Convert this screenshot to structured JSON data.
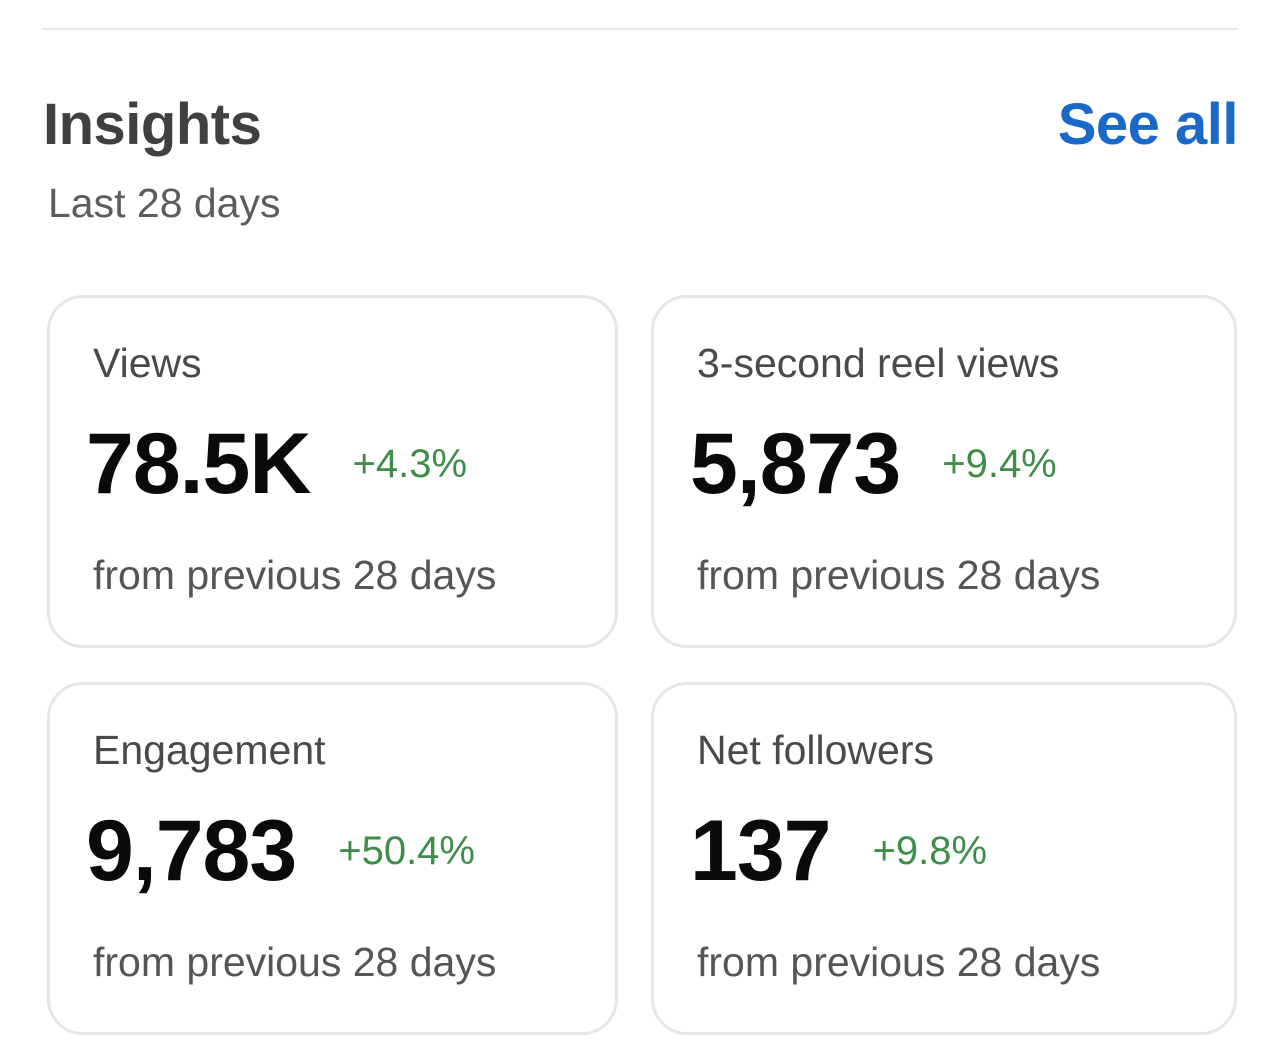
{
  "header": {
    "title": "Insights",
    "subtitle": "Last 28 days",
    "see_all_label": "See all"
  },
  "cards": [
    {
      "label": "Views",
      "value": "78.5K",
      "change": "+4.3%",
      "note": "from previous 28 days"
    },
    {
      "label": "3-second reel views",
      "value": "5,873",
      "change": "+9.4%",
      "note": "from previous 28 days"
    },
    {
      "label": "Engagement",
      "value": "9,783",
      "change": "+50.4%",
      "note": "from previous 28 days"
    },
    {
      "label": "Net followers",
      "value": "137",
      "change": "+9.8%",
      "note": "from previous 28 days"
    }
  ],
  "colors": {
    "accent_link": "#1a68c8",
    "positive_change": "#3e8e48",
    "card_border": "#e4e6ea"
  }
}
